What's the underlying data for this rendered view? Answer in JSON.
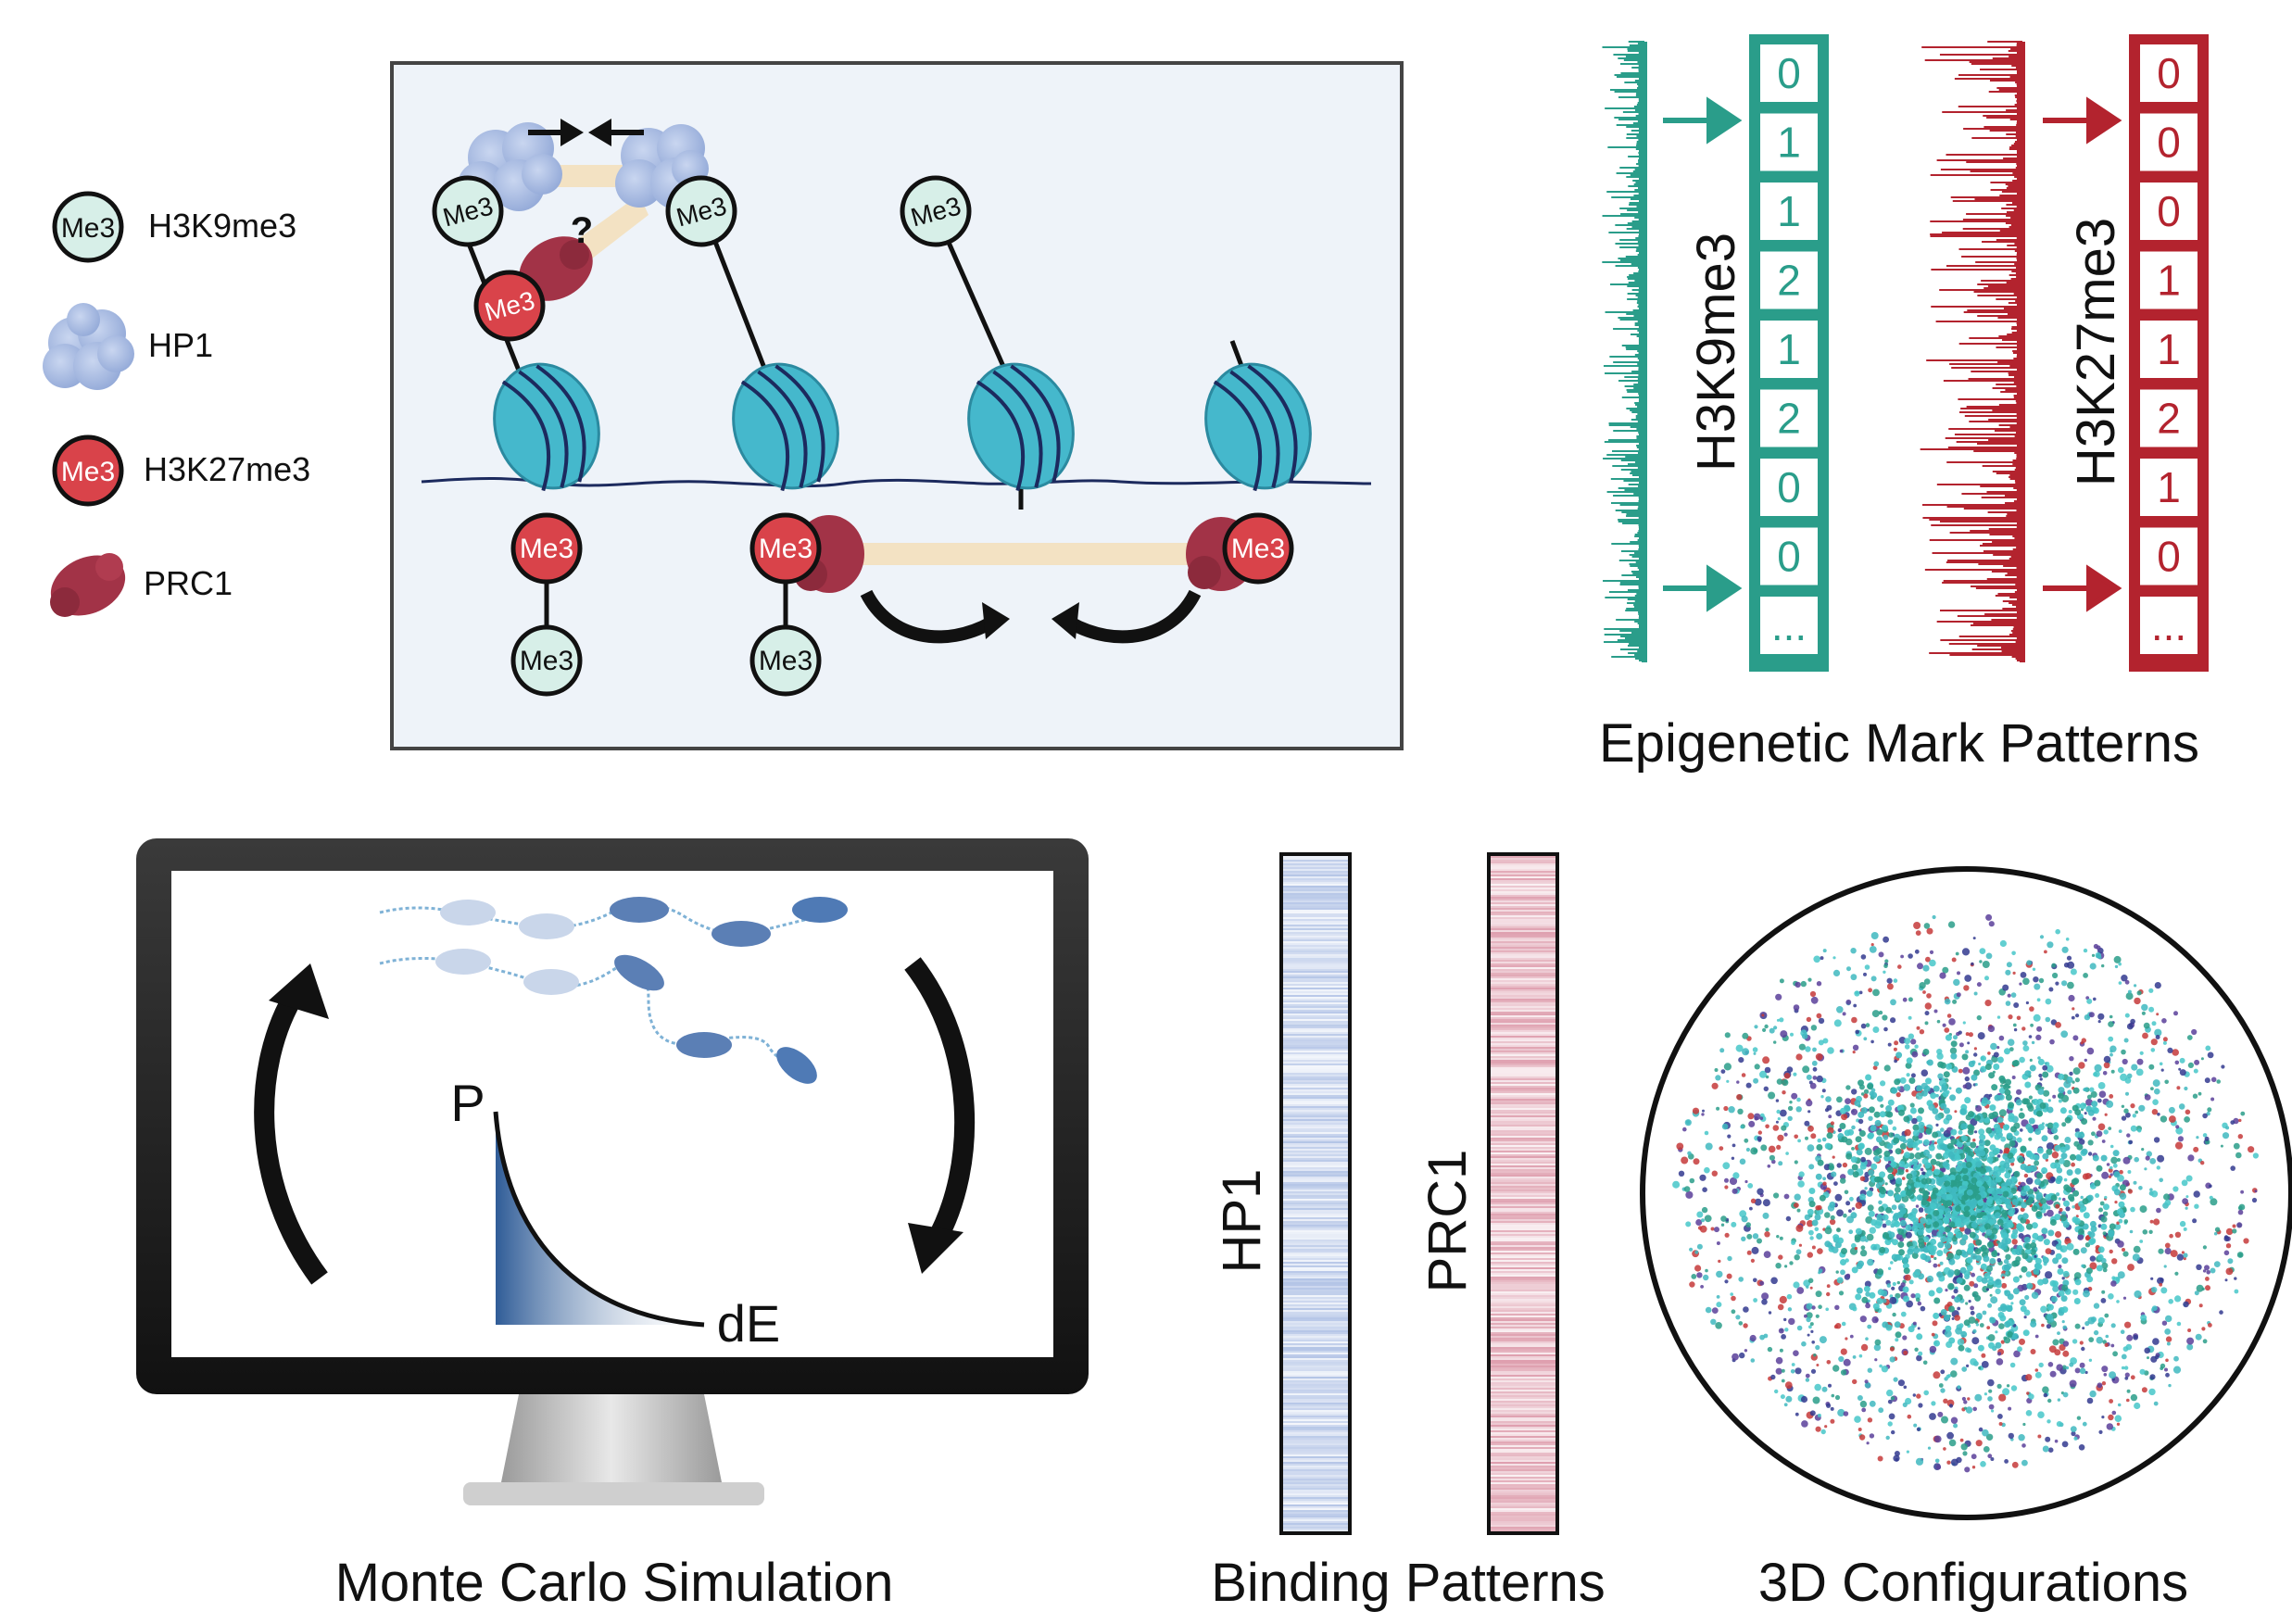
{
  "legend": {
    "items": [
      {
        "badge": "Me3",
        "label": "H3K9me3"
      },
      {
        "badge": "",
        "label": "HP1"
      },
      {
        "badge": "Me3",
        "label": "H3K27me3"
      },
      {
        "badge": "",
        "label": "PRC1"
      }
    ]
  },
  "mechanism": {
    "me3": "Me3",
    "question": "?"
  },
  "marks": {
    "h3k9_label": "H3K9me3",
    "h3k27_label": "H3K27me3",
    "h3k9_values": [
      "0",
      "1",
      "1",
      "2",
      "1",
      "2",
      "0",
      "0",
      "..."
    ],
    "h3k27_values": [
      "0",
      "0",
      "0",
      "1",
      "1",
      "2",
      "1",
      "0",
      "..."
    ],
    "caption": "Epigenetic Mark Patterns"
  },
  "simulation": {
    "p_label": "P",
    "de_label": "dE",
    "caption": "Monte Carlo Simulation"
  },
  "binding": {
    "hp1_label": "HP1",
    "prc1_label": "PRC1",
    "caption": "Binding Patterns"
  },
  "configurations": {
    "caption": "3D Configurations"
  },
  "colors": {
    "teal": "#2a9d8a",
    "red": "#b3232e",
    "nucleosome": "#45b8cc",
    "hp1": "#a9bde3",
    "prc1": "#a23347",
    "blue_dark": "#2f5c97"
  }
}
